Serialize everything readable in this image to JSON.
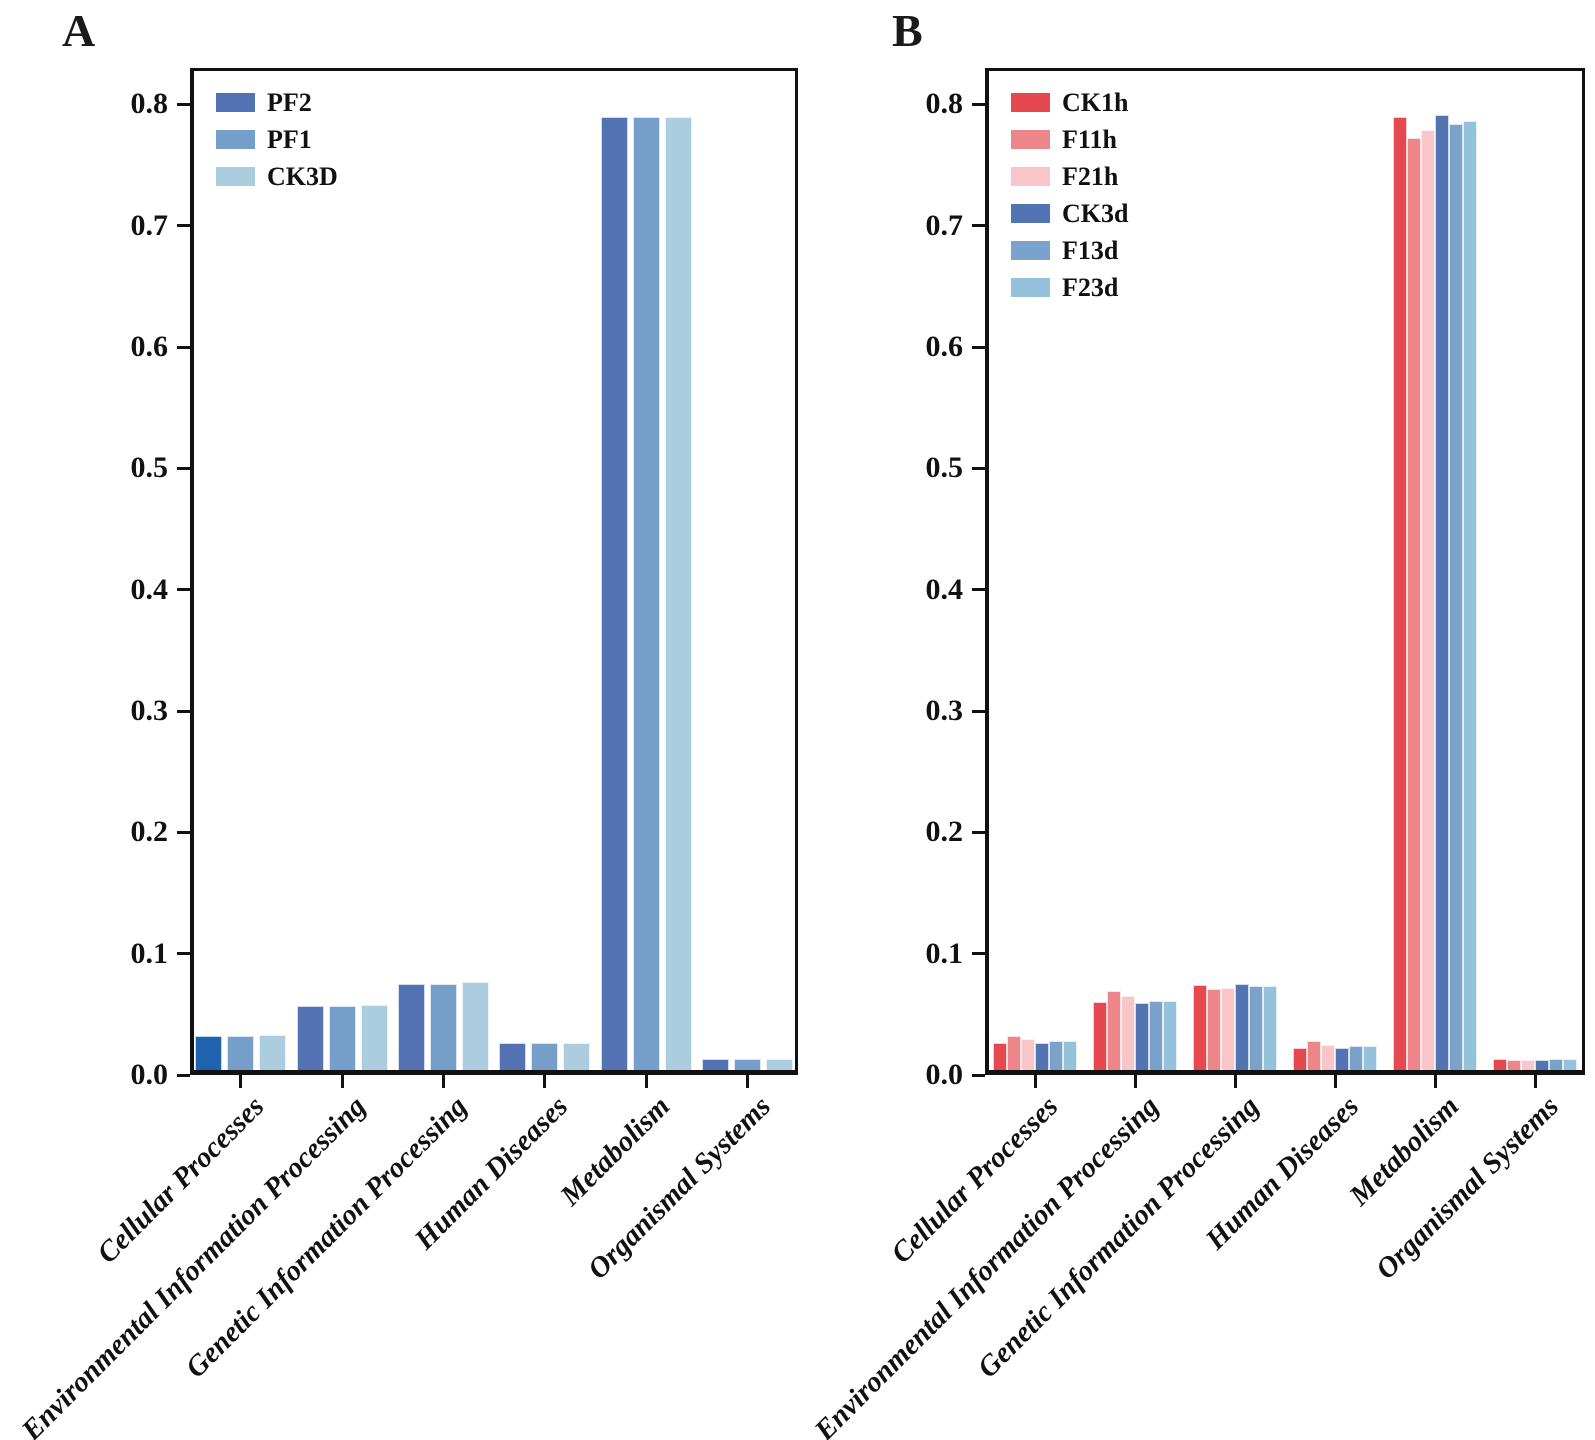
{
  "figure": {
    "panels": [
      {
        "letter": "A"
      },
      {
        "letter": "B"
      }
    ]
  },
  "chart_data": [
    {
      "type": "bar",
      "panel": "A",
      "title": "",
      "xlabel": "",
      "ylabel": "",
      "grid": false,
      "legend_position": "upper-left",
      "ylim": [
        0,
        0.83
      ],
      "yticks": [
        "0.0",
        "0.1",
        "0.2",
        "0.3",
        "0.4",
        "0.5",
        "0.6",
        "0.7",
        "0.8"
      ],
      "categories": [
        "Cellular Processes",
        "Environmental Information Processing",
        "Genetic Information Processing",
        "Human Diseases",
        "Metabolism",
        "Organismal Systems"
      ],
      "series": [
        {
          "name": "PF2",
          "color": "#5272B3",
          "values": [
            0.032,
            0.057,
            0.075,
            0.026,
            0.79,
            0.013
          ]
        },
        {
          "name": "PF1",
          "color": "#759FC9",
          "values": [
            0.032,
            0.057,
            0.075,
            0.026,
            0.79,
            0.013
          ]
        },
        {
          "name": "CK3D",
          "color": "#ACCCE0",
          "values": [
            0.033,
            0.058,
            0.077,
            0.026,
            0.79,
            0.013
          ]
        }
      ],
      "bar_color_overrides": [
        {
          "series": 0,
          "category": 0,
          "color": "#1F62AE"
        }
      ]
    },
    {
      "type": "bar",
      "panel": "B",
      "title": "",
      "xlabel": "",
      "ylabel": "",
      "grid": false,
      "legend_position": "upper-left",
      "ylim": [
        0,
        0.83
      ],
      "yticks": [
        "0.0",
        "0.1",
        "0.2",
        "0.3",
        "0.4",
        "0.5",
        "0.6",
        "0.7",
        "0.8"
      ],
      "categories": [
        "Cellular Processes",
        "Environmental Information Processing",
        "Genetic Information Processing",
        "Human Diseases",
        "Metabolism",
        "Organismal Systems"
      ],
      "series": [
        {
          "name": "CK1h",
          "color": "#E5484F",
          "values": [
            0.026,
            0.06,
            0.074,
            0.022,
            0.79,
            0.013
          ]
        },
        {
          "name": "F11h",
          "color": "#EC868B",
          "values": [
            0.032,
            0.069,
            0.071,
            0.028,
            0.772,
            0.012
          ]
        },
        {
          "name": "F21h",
          "color": "#F8C6C8",
          "values": [
            0.03,
            0.065,
            0.072,
            0.025,
            0.779,
            0.012
          ]
        },
        {
          "name": "CK3d",
          "color": "#5374B2",
          "values": [
            0.026,
            0.059,
            0.075,
            0.022,
            0.791,
            0.012
          ]
        },
        {
          "name": "F13d",
          "color": "#7AA2CA",
          "values": [
            0.028,
            0.061,
            0.073,
            0.024,
            0.784,
            0.013
          ]
        },
        {
          "name": "F23d",
          "color": "#94C2DB",
          "values": [
            0.028,
            0.061,
            0.073,
            0.024,
            0.786,
            0.013
          ]
        }
      ],
      "bar_color_overrides": []
    }
  ]
}
